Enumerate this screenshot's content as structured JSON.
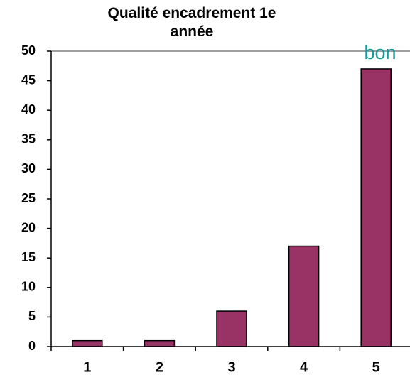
{
  "chart_data": {
    "type": "bar",
    "title": "Qualité encadrement 1e année",
    "categories": [
      "1",
      "2",
      "3",
      "4",
      "5"
    ],
    "values": [
      1,
      1,
      6,
      17,
      47
    ],
    "color": "#993366",
    "ylim": [
      0,
      50
    ],
    "yticks": [
      0,
      5,
      10,
      15,
      20,
      25,
      30,
      35,
      40,
      45,
      50
    ],
    "annotation": "bon"
  }
}
